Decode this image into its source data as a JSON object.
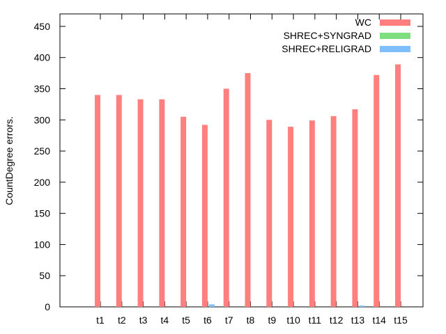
{
  "chart_data": {
    "type": "bar",
    "title": "",
    "xlabel": "",
    "ylabel": "CountDegree errors.",
    "ylim": [
      0,
      470
    ],
    "yticks": [
      0,
      50,
      100,
      150,
      200,
      250,
      300,
      350,
      400,
      450
    ],
    "grid": false,
    "legend_position": "top-right",
    "categories": [
      "t1",
      "t2",
      "t3",
      "t4",
      "t5",
      "t6",
      "t7",
      "t8",
      "t9",
      "t10",
      "t11",
      "t12",
      "t13",
      "t14",
      "t15"
    ],
    "series": [
      {
        "name": "WC",
        "color": "#ff7f7f",
        "values": [
          340,
          340,
          333,
          333,
          305,
          292,
          350,
          375,
          300,
          289,
          299,
          306,
          317,
          372,
          389
        ]
      },
      {
        "name": "SHREC+SYNGRAD",
        "color": "#7fde7f",
        "values": [
          0,
          0,
          0,
          0,
          0,
          0,
          0,
          0,
          0,
          0,
          0,
          0,
          0,
          0,
          0
        ]
      },
      {
        "name": "SHREC+RELIGRAD",
        "color": "#7fbfff",
        "values": [
          0,
          0,
          0,
          0,
          0,
          4,
          0,
          0,
          0,
          0,
          0,
          0,
          2,
          0,
          0
        ]
      }
    ]
  }
}
